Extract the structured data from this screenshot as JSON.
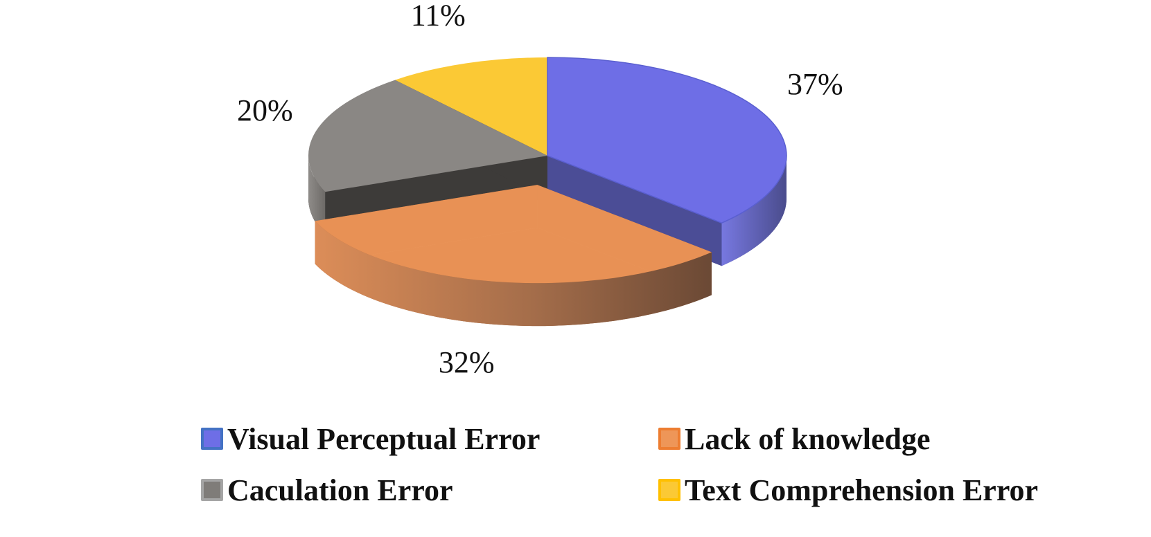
{
  "chart_data": {
    "type": "pie",
    "title": "",
    "labels": [
      "Visual Perceptual Error",
      "Lack of knowledge",
      "Caculation Error",
      "Text Comprehension Error"
    ],
    "values": [
      37,
      32,
      20,
      11
    ],
    "value_labels": [
      "37%",
      "32%",
      "20%",
      "11%"
    ],
    "colors": [
      "#6e6ee6",
      "#ee9658",
      "#8a8784",
      "#fbc935"
    ],
    "legend_border_colors": [
      "#4472c4",
      "#ed7d31",
      "#a5a5a5",
      "#ffc000"
    ],
    "exploded_slice": "Lack of knowledge",
    "style": "3d",
    "legend_position": "bottom"
  }
}
